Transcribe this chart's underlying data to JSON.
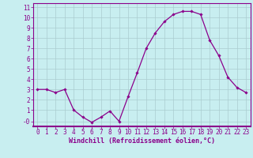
{
  "x": [
    0,
    1,
    2,
    3,
    4,
    5,
    6,
    7,
    8,
    9,
    10,
    11,
    12,
    13,
    14,
    15,
    16,
    17,
    18,
    19,
    20,
    21,
    22,
    23
  ],
  "y": [
    3.0,
    3.0,
    2.7,
    3.0,
    1.0,
    0.3,
    -0.2,
    0.3,
    0.9,
    -0.1,
    2.3,
    4.6,
    7.0,
    8.5,
    9.6,
    10.3,
    10.6,
    10.6,
    10.3,
    7.8,
    6.3,
    4.2,
    3.2,
    2.7
  ],
  "line_color": "#8b008b",
  "marker": "D",
  "marker_size": 1.8,
  "line_width": 0.9,
  "bg_color": "#c8eef0",
  "grid_color": "#aaccd0",
  "xlabel": "Windchill (Refroidissement éolien,°C)",
  "xlabel_color": "#8b008b",
  "xlabel_fontsize": 6.0,
  "ytick_labels": [
    "-0",
    "1",
    "2",
    "3",
    "4",
    "5",
    "6",
    "7",
    "8",
    "9",
    "10",
    "11"
  ],
  "ytick_values": [
    -0.1,
    1,
    2,
    3,
    4,
    5,
    6,
    7,
    8,
    9,
    10,
    11
  ],
  "ylim": [
    -0.6,
    11.4
  ],
  "xlim": [
    -0.5,
    23.5
  ],
  "tick_fontsize": 5.5,
  "tick_color": "#8b008b",
  "spine_color": "#8b008b",
  "bottom_bar_color": "#8b008b"
}
